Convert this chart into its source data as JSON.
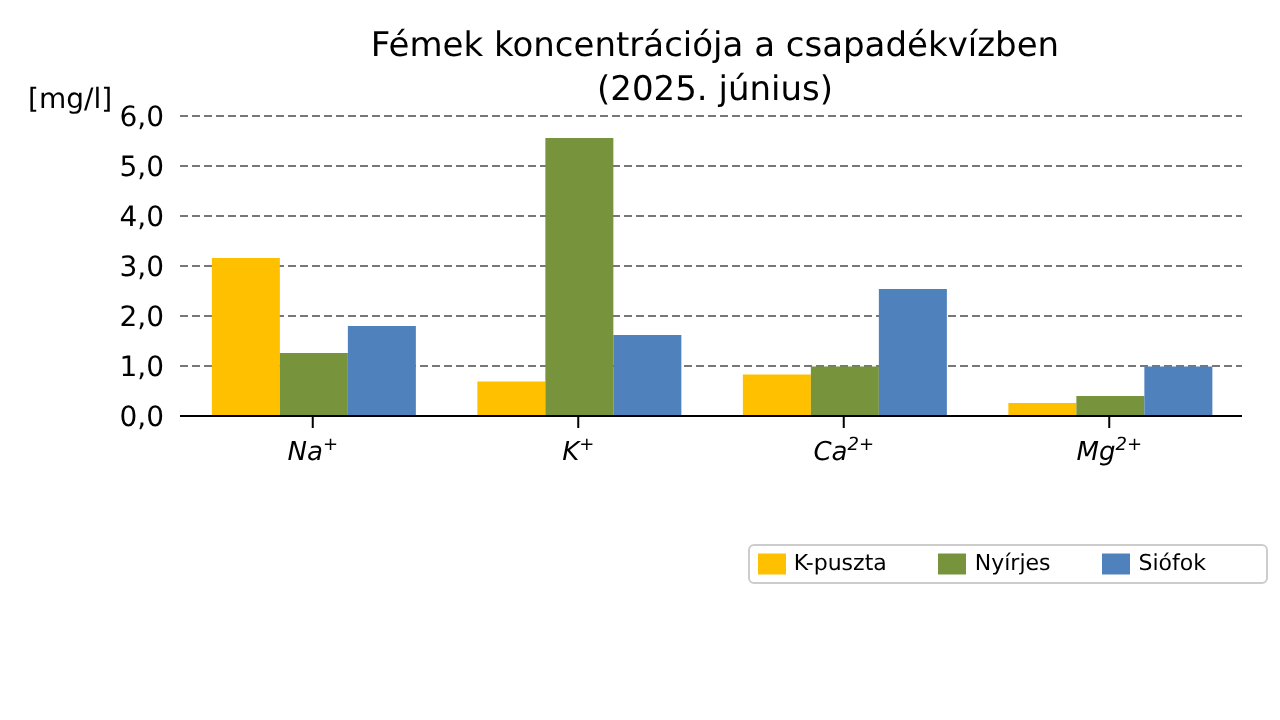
{
  "chart_data": {
    "type": "bar",
    "title": "Fémek koncentrációja a csapadékvízben",
    "subtitle": "(2025. június)",
    "ylabel": "[mg/l]",
    "categories": [
      "Na$^{+}$",
      "K$^{+}$",
      "Ca$^{2+}$",
      "Mg$^{2+}$"
    ],
    "series": [
      {
        "name": "K-puszta",
        "color": "#ffc000",
        "values": [
          3.16,
          0.69,
          0.83,
          0.26
        ]
      },
      {
        "name": "Nyírjes",
        "color": "#77933c",
        "values": [
          1.26,
          5.56,
          0.99,
          0.4
        ]
      },
      {
        "name": "Siófok",
        "color": "#4f81bd",
        "values": [
          1.8,
          1.62,
          2.54,
          0.99
        ]
      }
    ],
    "ylim": [
      0,
      6
    ],
    "yticks": [
      {
        "value": 0,
        "label": "0,0"
      },
      {
        "value": 1,
        "label": "1,0"
      },
      {
        "value": 2,
        "label": "2,0"
      },
      {
        "value": 3,
        "label": "3,0"
      },
      {
        "value": 4,
        "label": "4,0"
      },
      {
        "value": 5,
        "label": "5,0"
      },
      {
        "value": 6,
        "label": "6,0"
      }
    ],
    "grid": "y",
    "legend": "bottom right"
  }
}
